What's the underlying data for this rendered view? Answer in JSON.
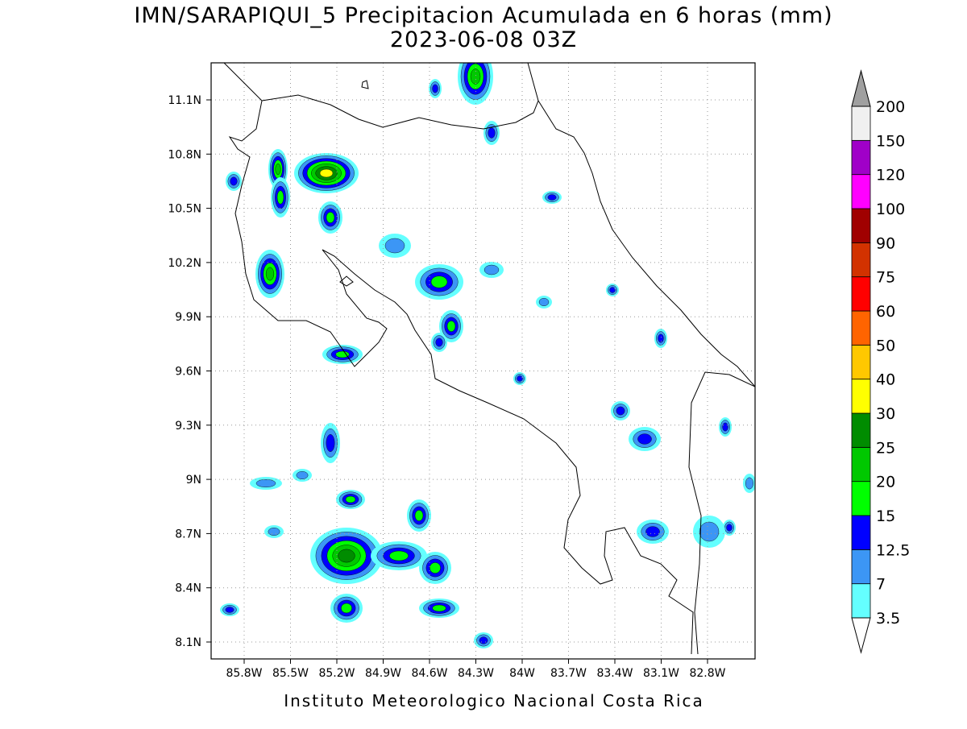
{
  "header": {
    "title": "IMN/SARAPIQUI_5 Precipitacion Acumulada en 6 horas (mm)",
    "subtitle": "2023-06-08 03Z"
  },
  "map": {
    "lon_ticks": [
      "85.8W",
      "85.5W",
      "85.2W",
      "84.9W",
      "84.6W",
      "84.3W",
      "84W",
      "83.7W",
      "83.4W",
      "83.1W",
      "82.8W"
    ],
    "lat_ticks": [
      "11.1N",
      "10.8N",
      "10.5N",
      "10.2N",
      "9.9N",
      "9.6N",
      "9.3N",
      "9N",
      "8.7N",
      "8.4N",
      "8.1N"
    ]
  },
  "colorbar": {
    "levels": [
      3.5,
      7,
      12.5,
      15,
      20,
      25,
      30,
      40,
      50,
      60,
      75,
      90,
      100,
      120,
      150,
      200
    ],
    "colors": [
      "#64ffff",
      "#3c96f5",
      "#0000ff",
      "#00ff00",
      "#00c800",
      "#008c00",
      "#ffff00",
      "#ffc800",
      "#ff6400",
      "#ff0000",
      "#d23200",
      "#a00000",
      "#ff00ff",
      "#a000c8",
      "#f0f0f0"
    ],
    "over_color": "#a0a0a0",
    "under_color": "#ffffff"
  },
  "footer": "Instituto Meteorologico Nacional Costa Rica"
}
